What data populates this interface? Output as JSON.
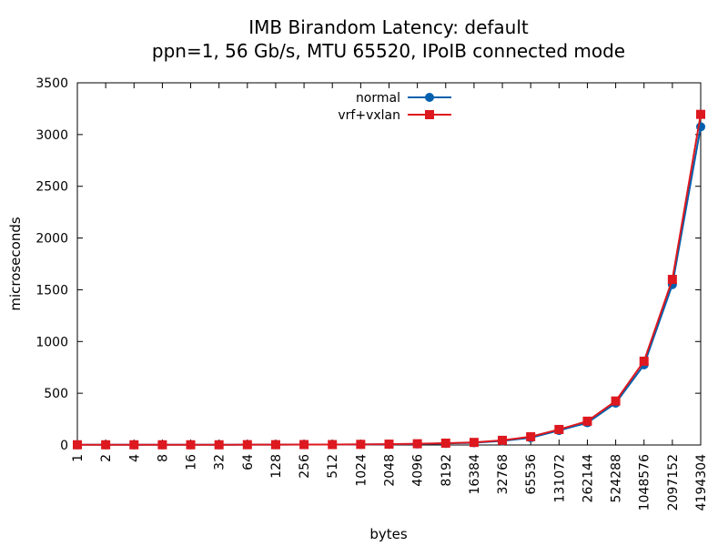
{
  "chart_data": {
    "type": "line",
    "title": "IMB Birandom Latency: default",
    "subtitle": "ppn=1, 56 Gb/s, MTU 65520, IPoIB connected mode",
    "xlabel": "bytes",
    "ylabel": "microseconds",
    "ylim": [
      0,
      3500
    ],
    "yticks": [
      0,
      500,
      1000,
      1500,
      2000,
      2500,
      3000,
      3500
    ],
    "categories": [
      "1",
      "2",
      "4",
      "8",
      "16",
      "32",
      "64",
      "128",
      "256",
      "512",
      "1024",
      "2048",
      "4096",
      "8192",
      "16384",
      "32768",
      "65536",
      "131072",
      "262144",
      "524288",
      "1048576",
      "2097152",
      "4194304"
    ],
    "legend_position": "top-center",
    "grid": false,
    "series": [
      {
        "name": "normal",
        "color": "#0060ad",
        "marker": "circle",
        "values": [
          2,
          2,
          2,
          2,
          2,
          2,
          3,
          3,
          4,
          4,
          5,
          7,
          10,
          15,
          22,
          40,
          70,
          140,
          215,
          405,
          775,
          1550,
          3075
        ]
      },
      {
        "name": "vrf+vxlan",
        "color": "#dd181f",
        "marker": "square",
        "values": [
          2,
          2,
          2,
          2,
          2,
          2,
          3,
          3,
          4,
          4,
          6,
          8,
          12,
          18,
          25,
          45,
          80,
          150,
          230,
          425,
          810,
          1600,
          3195
        ]
      }
    ]
  }
}
